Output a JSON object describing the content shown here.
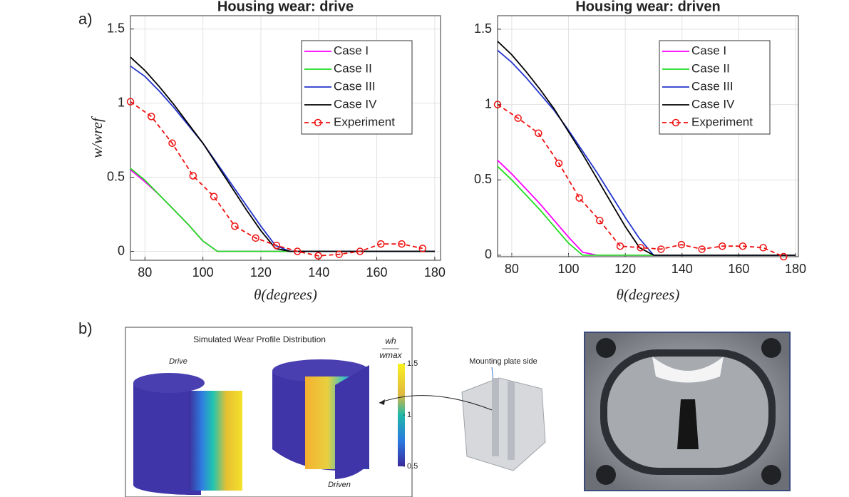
{
  "panel_labels": [
    "a)",
    "b)"
  ],
  "chart_data": [
    {
      "type": "line",
      "title": "Housing wear: drive",
      "ylabel": "w/wref",
      "xlabel": "θ(degrees)",
      "xlim": [
        75,
        182
      ],
      "xticks": [
        80,
        100,
        120,
        140,
        160,
        180
      ],
      "ylim": [
        -0.06,
        1.59
      ],
      "yticks": [
        0,
        0.5,
        1,
        1.5
      ],
      "grid": true,
      "legend": "upper right",
      "x": [
        75,
        80,
        85,
        90,
        95,
        100,
        105,
        110,
        115,
        120,
        125,
        130,
        135,
        140,
        145,
        150,
        155,
        160,
        165,
        170,
        175,
        180
      ],
      "series": [
        {
          "name": "Case I",
          "color": "#ff00ff",
          "values": [
            0.55,
            0.47,
            0.38,
            0.28,
            0.18,
            0.07,
            0,
            0,
            0,
            0,
            0,
            0,
            0,
            0,
            0,
            0,
            0,
            0,
            0,
            0,
            0,
            0
          ]
        },
        {
          "name": "Case II",
          "color": "#22dd22",
          "values": [
            0.56,
            0.48,
            0.38,
            0.28,
            0.18,
            0.07,
            0,
            0,
            0,
            0,
            0,
            0,
            0,
            0,
            0,
            0,
            0,
            0,
            0,
            0,
            0,
            0
          ]
        },
        {
          "name": "Case III",
          "color": "#2233cc",
          "values": [
            1.25,
            1.18,
            1.08,
            0.97,
            0.85,
            0.73,
            0.59,
            0.45,
            0.31,
            0.17,
            0.04,
            0,
            0,
            0,
            0,
            0,
            0,
            0,
            0,
            0,
            0,
            0
          ]
        },
        {
          "name": "Case IV",
          "color": "#000000",
          "values": [
            1.31,
            1.22,
            1.11,
            0.99,
            0.86,
            0.73,
            0.58,
            0.43,
            0.28,
            0.14,
            0.02,
            0,
            0,
            0,
            0,
            0,
            0,
            0,
            0,
            0,
            0,
            0
          ]
        },
        {
          "name": "Experiment",
          "color": "#ee1111",
          "dashed": true,
          "marker": "circle",
          "x": [
            75,
            82.2,
            89.4,
            96.6,
            103.8,
            111,
            118.2,
            125.4,
            132.6,
            139.8,
            147,
            154.2,
            161.4,
            168.6,
            175.8
          ],
          "values": [
            1.01,
            0.91,
            0.73,
            0.51,
            0.37,
            0.17,
            0.09,
            0.04,
            0.0,
            -0.03,
            -0.02,
            0.0,
            0.05,
            0.05,
            0.02
          ]
        }
      ]
    },
    {
      "type": "line",
      "title": "Housing wear: driven",
      "xlabel": "θ(degrees)",
      "xlim": [
        75,
        181
      ],
      "xticks": [
        80,
        100,
        120,
        140,
        160,
        180
      ],
      "ylim": [
        -0.01,
        1.59
      ],
      "yticks": [
        0,
        0.5,
        1,
        1.5
      ],
      "grid": true,
      "legend": "upper right",
      "x": [
        75,
        80,
        85,
        90,
        95,
        100,
        105,
        110,
        115,
        120,
        125,
        130,
        135,
        140,
        145,
        150,
        155,
        160,
        165,
        170,
        175,
        180
      ],
      "series": [
        {
          "name": "Case I",
          "color": "#ff00ff",
          "values": [
            0.63,
            0.54,
            0.44,
            0.34,
            0.23,
            0.12,
            0.02,
            0,
            0,
            0,
            0,
            0,
            0,
            0,
            0,
            0,
            0,
            0,
            0,
            0,
            0,
            0
          ]
        },
        {
          "name": "Case II",
          "color": "#22dd22",
          "values": [
            0.59,
            0.5,
            0.4,
            0.3,
            0.19,
            0.08,
            0,
            0,
            0,
            0,
            0,
            0,
            0,
            0,
            0,
            0,
            0,
            0,
            0,
            0,
            0,
            0
          ]
        },
        {
          "name": "Case III",
          "color": "#2233cc",
          "values": [
            1.36,
            1.28,
            1.18,
            1.07,
            0.96,
            0.83,
            0.69,
            0.55,
            0.4,
            0.25,
            0.11,
            0,
            0,
            0,
            0,
            0,
            0,
            0,
            0,
            0,
            0,
            0
          ]
        },
        {
          "name": "Case IV",
          "color": "#000000",
          "values": [
            1.42,
            1.33,
            1.22,
            1.1,
            0.97,
            0.82,
            0.67,
            0.51,
            0.35,
            0.19,
            0.05,
            0,
            0,
            0,
            0,
            0,
            0,
            0,
            0,
            0,
            0,
            0
          ]
        },
        {
          "name": "Experiment",
          "color": "#ee1111",
          "dashed": true,
          "marker": "circle",
          "x": [
            75,
            82.2,
            89.4,
            96.6,
            103.8,
            111,
            118.2,
            125.4,
            132.6,
            139.8,
            147,
            154.2,
            161.4,
            168.6,
            175.8
          ],
          "values": [
            1.0,
            0.91,
            0.81,
            0.61,
            0.38,
            0.23,
            0.06,
            0.05,
            0.04,
            0.07,
            0.04,
            0.06,
            0.06,
            0.05,
            -0.01
          ]
        }
      ]
    }
  ],
  "figure_b": {
    "title": "Simulated Wear Profile Distribution",
    "left_label": "Drive",
    "right_label": "Driven",
    "colorbar_label": {
      "numerator": "wh",
      "denominator": "wmax"
    },
    "colorbar_lim": [
      0.5,
      1.5
    ],
    "colorbar_ticks": [
      1.5,
      1,
      0.5
    ],
    "callout": "Mounting plate side"
  }
}
